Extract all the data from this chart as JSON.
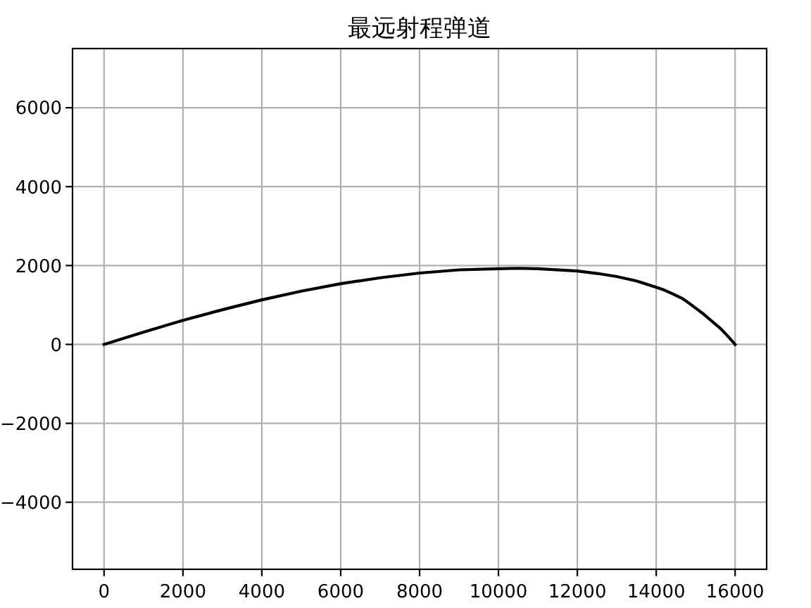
{
  "chart_data": {
    "type": "line",
    "title": "最远射程弹道",
    "x": [
      0,
      1000,
      2000,
      3000,
      4000,
      5000,
      6000,
      7000,
      8000,
      9000,
      10000,
      10500,
      11000,
      11700,
      12000,
      12500,
      13000,
      13500,
      14000,
      14200,
      14400,
      14650,
      14800,
      15000,
      15200,
      15400,
      15600,
      15720,
      15850,
      15930,
      16000
    ],
    "values": [
      0,
      310,
      610,
      880,
      1130,
      1350,
      1540,
      1690,
      1810,
      1890,
      1920,
      1930,
      1920,
      1880,
      1860,
      1800,
      1720,
      1610,
      1450,
      1380,
      1290,
      1170,
      1070,
      920,
      770,
      600,
      430,
      310,
      170,
      80,
      0
    ],
    "color": "#000000",
    "xlim": [
      -800,
      16800
    ],
    "ylim": [
      -5700,
      7500
    ],
    "xticks": [
      0,
      2000,
      4000,
      6000,
      8000,
      10000,
      12000,
      14000,
      16000
    ],
    "yticks": [
      -4000,
      -2000,
      0,
      2000,
      4000,
      6000
    ],
    "grid": true
  }
}
